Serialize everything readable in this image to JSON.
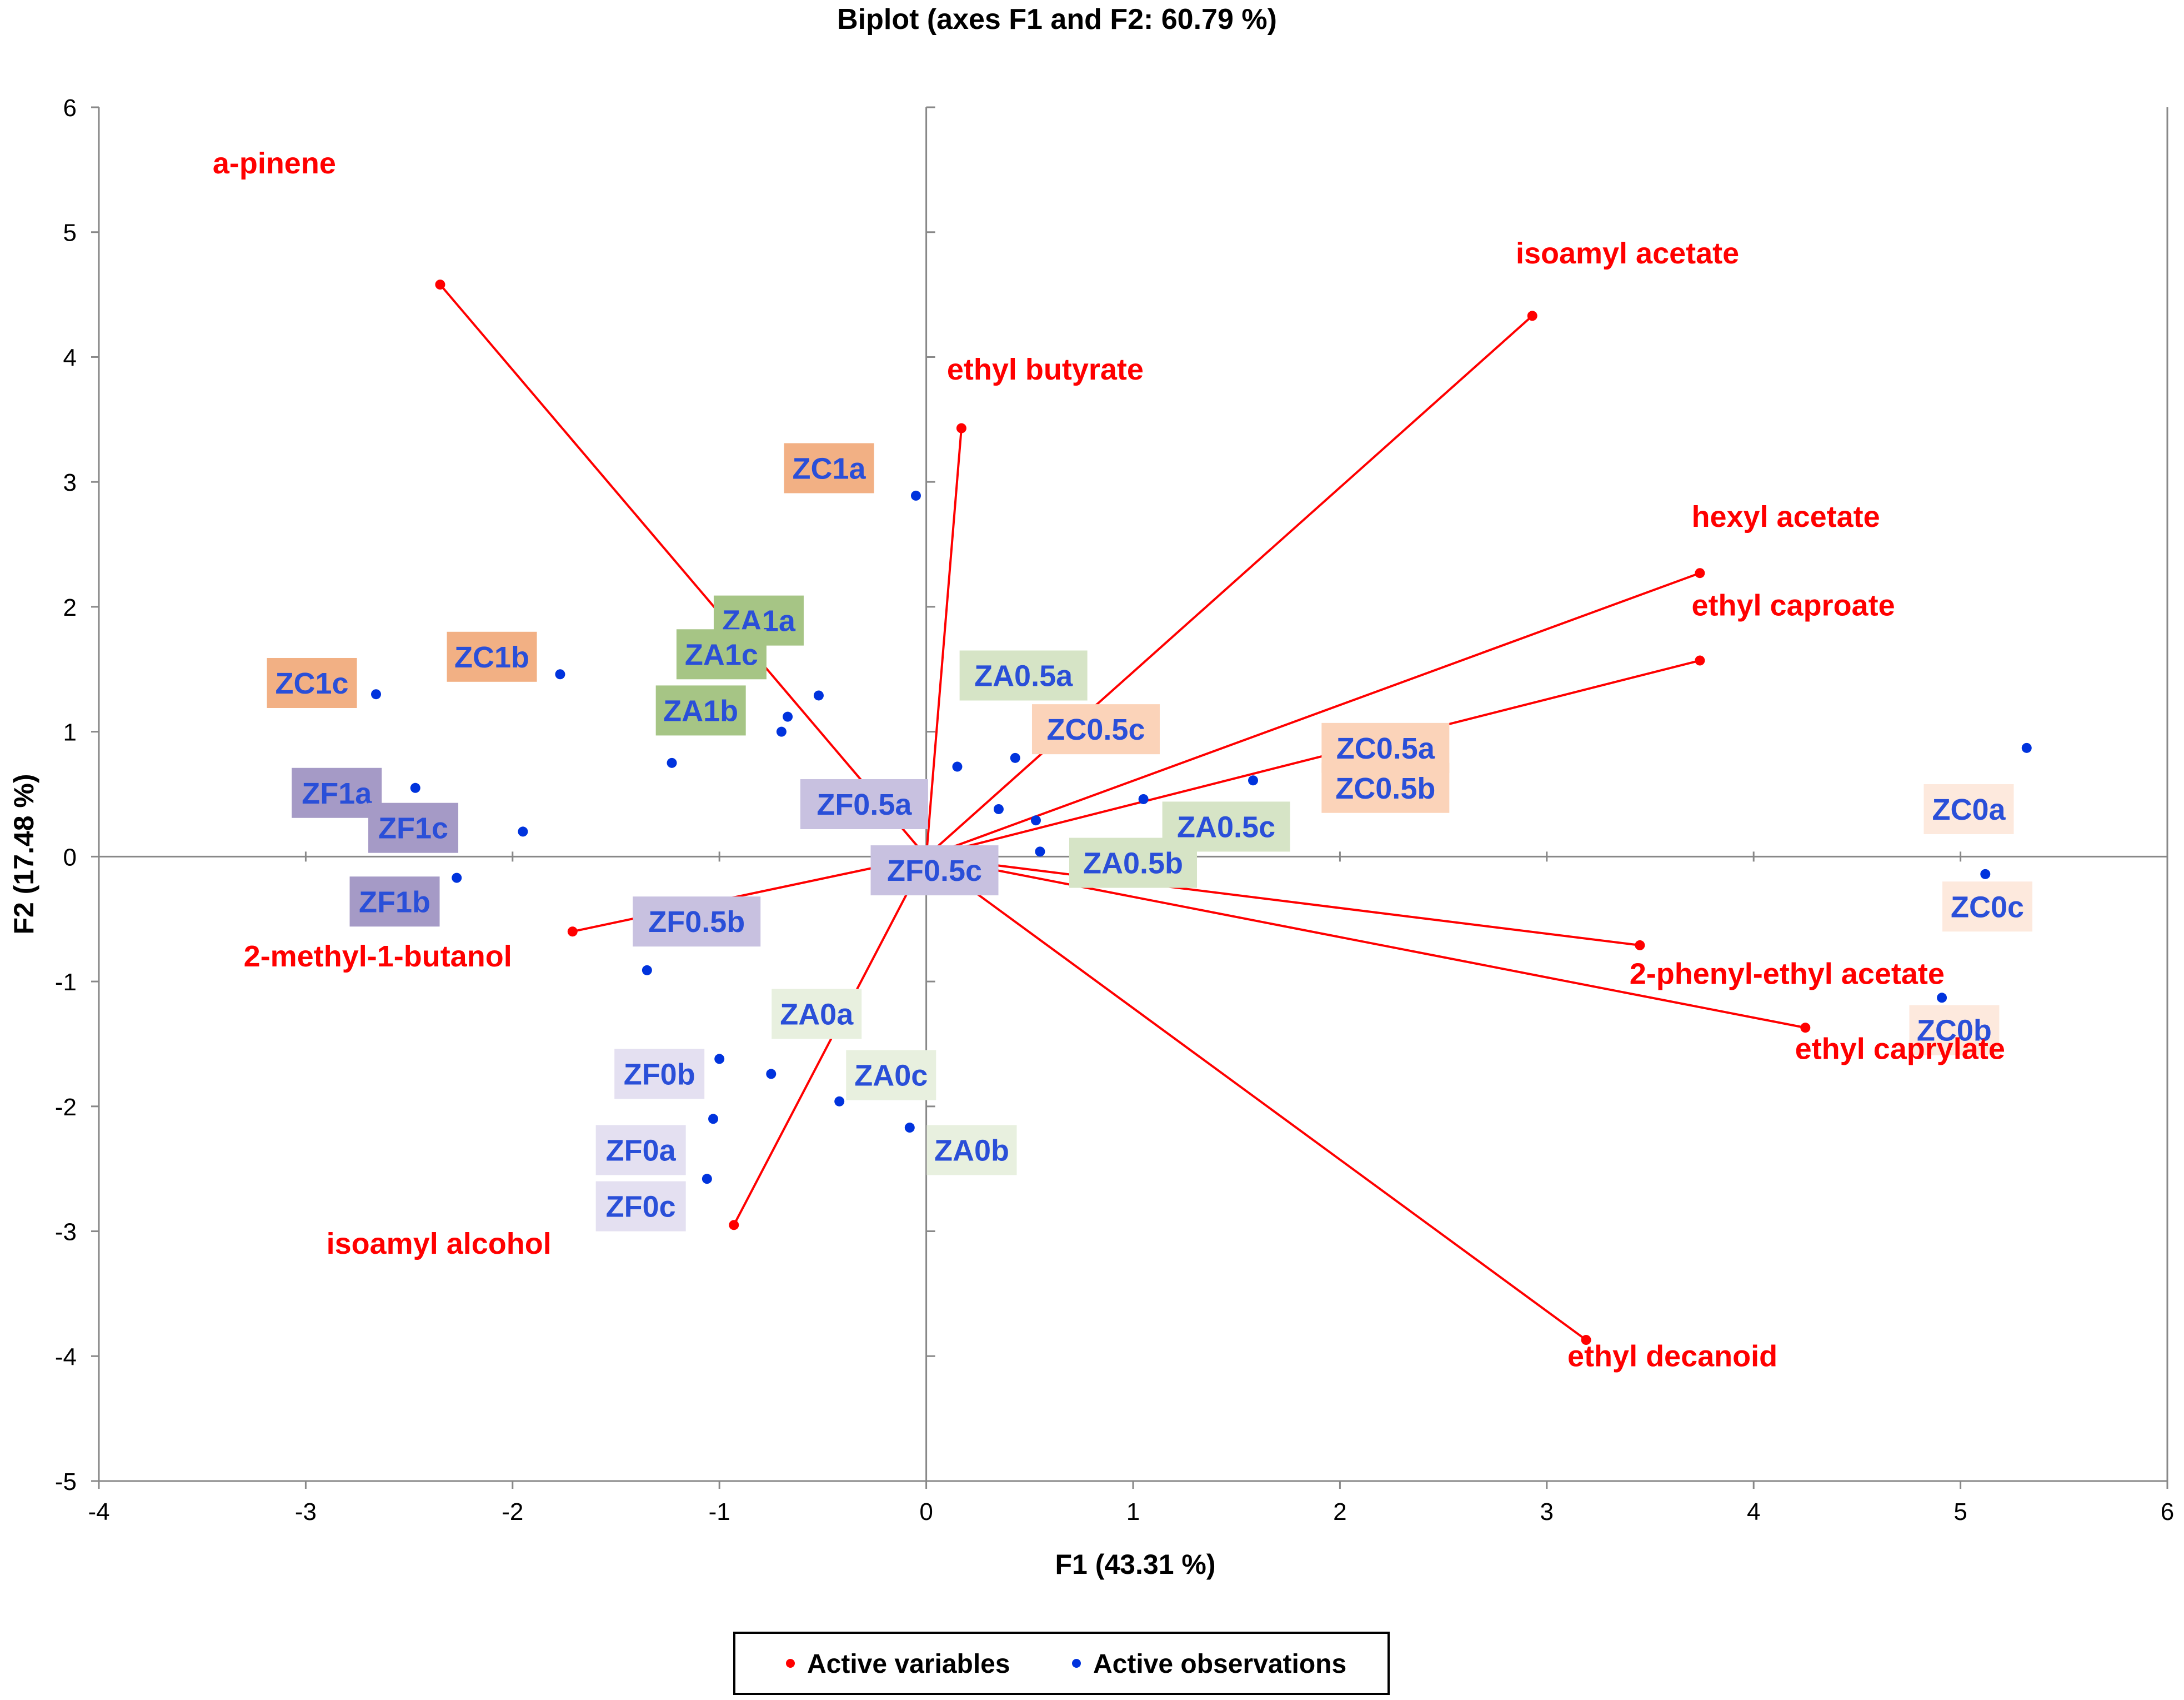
{
  "chart_data": {
    "type": "scatter",
    "subtype": "biplot",
    "title": "Biplot (axes F1 and F2: 60.79 %)",
    "xlabel": "F1 (43.31 %)",
    "ylabel": "F2 (17.48 %)",
    "xlim": [
      -4,
      6
    ],
    "ylim": [
      -5,
      6
    ],
    "xticks": [
      "-4",
      "-3",
      "-2",
      "-1",
      "0",
      "1",
      "2",
      "3",
      "4",
      "5",
      "6"
    ],
    "yticks": [
      "-5",
      "-4",
      "-3",
      "-2",
      "-1",
      "0",
      "1",
      "2",
      "3",
      "4",
      "5",
      "6"
    ],
    "grid": false,
    "colors": {
      "variables": "#ff0000",
      "observations": "#0033dd",
      "axis": "#888888",
      "label_text": "#2a4fd8",
      "var_text": "#ff0000"
    },
    "variables": [
      {
        "name": "a-pinene",
        "x": -2.35,
        "y": 4.58
      },
      {
        "name": "ethyl butyrate",
        "x": 0.17,
        "y": 3.43
      },
      {
        "name": "isoamyl acetate",
        "x": 2.93,
        "y": 4.33
      },
      {
        "name": "hexyl acetate",
        "x": 3.74,
        "y": 2.27
      },
      {
        "name": "ethyl caproate",
        "x": 3.74,
        "y": 1.57
      },
      {
        "name": "2-phenyl-ethyl acetate",
        "x": 3.45,
        "y": -0.71
      },
      {
        "name": "ethyl caprylate",
        "x": 4.25,
        "y": -1.37
      },
      {
        "name": "ethyl decanoid",
        "x": 3.19,
        "y": -3.87
      },
      {
        "name": "isoamyl alcohol",
        "x": -0.93,
        "y": -2.95
      },
      {
        "name": "2-methyl-1-butanol",
        "x": -1.71,
        "y": -0.6
      }
    ],
    "observations": [
      {
        "name": "ZC1a",
        "x": -0.05,
        "y": 2.89,
        "group": "ZC1"
      },
      {
        "name": "ZC1b",
        "x": -1.77,
        "y": 1.46,
        "group": "ZC1"
      },
      {
        "name": "ZC1c",
        "x": -2.66,
        "y": 1.3,
        "group": "ZC1"
      },
      {
        "name": "ZA1a",
        "x": -0.52,
        "y": 1.29,
        "group": "ZA1"
      },
      {
        "name": "ZA1c",
        "x": -0.67,
        "y": 1.12,
        "group": "ZA1"
      },
      {
        "name": "ZA1b",
        "x": -0.7,
        "y": 1.0,
        "group": "ZA1"
      },
      {
        "name": "ZF1a",
        "x": -2.47,
        "y": 0.55,
        "group": "ZF1"
      },
      {
        "name": "ZF1c",
        "x": -1.95,
        "y": 0.2,
        "group": "ZF1"
      },
      {
        "name": "ZF1b",
        "x": -2.27,
        "y": -0.17,
        "group": "ZF1"
      },
      {
        "name": "ZA0.5a",
        "x": 0.43,
        "y": 0.79,
        "group": "ZA0.5"
      },
      {
        "name": "ZC0.5c",
        "x": 0.35,
        "y": 0.38,
        "group": "ZC0.5"
      },
      {
        "name": "ZC0.5a",
        "x": 1.58,
        "y": 0.61,
        "group": "ZC0.5"
      },
      {
        "name": "ZC0.5b",
        "x": 1.05,
        "y": 0.46,
        "group": "ZC0.5"
      },
      {
        "name": "ZA0.5c",
        "x": 0.53,
        "y": 0.29,
        "group": "ZA0.5"
      },
      {
        "name": "ZA0.5b",
        "x": 0.55,
        "y": 0.04,
        "group": "ZA0.5"
      },
      {
        "name": "ZF0.5a",
        "x": -1.23,
        "y": 0.75,
        "group": "ZF0.5"
      },
      {
        "name": "ZF0.5c",
        "x": 0.15,
        "y": 0.72,
        "group": "ZF0.5"
      },
      {
        "name": "ZF0.5b",
        "x": -1.35,
        "y": -0.91,
        "group": "ZF0.5"
      },
      {
        "name": "ZC0a",
        "x": 5.32,
        "y": 0.87,
        "group": "ZC0"
      },
      {
        "name": "ZC0c",
        "x": 5.12,
        "y": -0.14,
        "group": "ZC0"
      },
      {
        "name": "ZC0b",
        "x": 4.91,
        "y": -1.13,
        "group": "ZC0"
      },
      {
        "name": "ZA0a",
        "x": -0.75,
        "y": -1.74,
        "group": "ZA0"
      },
      {
        "name": "ZA0c",
        "x": -0.42,
        "y": -1.96,
        "group": "ZA0"
      },
      {
        "name": "ZA0b",
        "x": -0.08,
        "y": -2.17,
        "group": "ZA0"
      },
      {
        "name": "ZF0b",
        "x": -1.0,
        "y": -1.62,
        "group": "ZF0"
      },
      {
        "name": "ZF0a",
        "x": -1.03,
        "y": -2.1,
        "group": "ZF0"
      },
      {
        "name": "ZF0c",
        "x": -1.06,
        "y": -2.58,
        "group": "ZF0"
      }
    ],
    "group_colors": {
      "ZC1": "#f2b084",
      "ZA1": "#a6c585",
      "ZF1": "#a59ac6",
      "ZC0.5": "#fbd3b9",
      "ZA0.5": "#d6e4c6",
      "ZF0.5": "#c8c1e0",
      "ZC0": "#fde9dd",
      "ZA0": "#e8f0df",
      "ZF0": "#e4e0f1"
    },
    "legend": {
      "position": "bottom-center",
      "items": [
        {
          "label": "Active variables",
          "color": "#ff0000"
        },
        {
          "label": "Active observations",
          "color": "#0033dd"
        }
      ]
    }
  }
}
